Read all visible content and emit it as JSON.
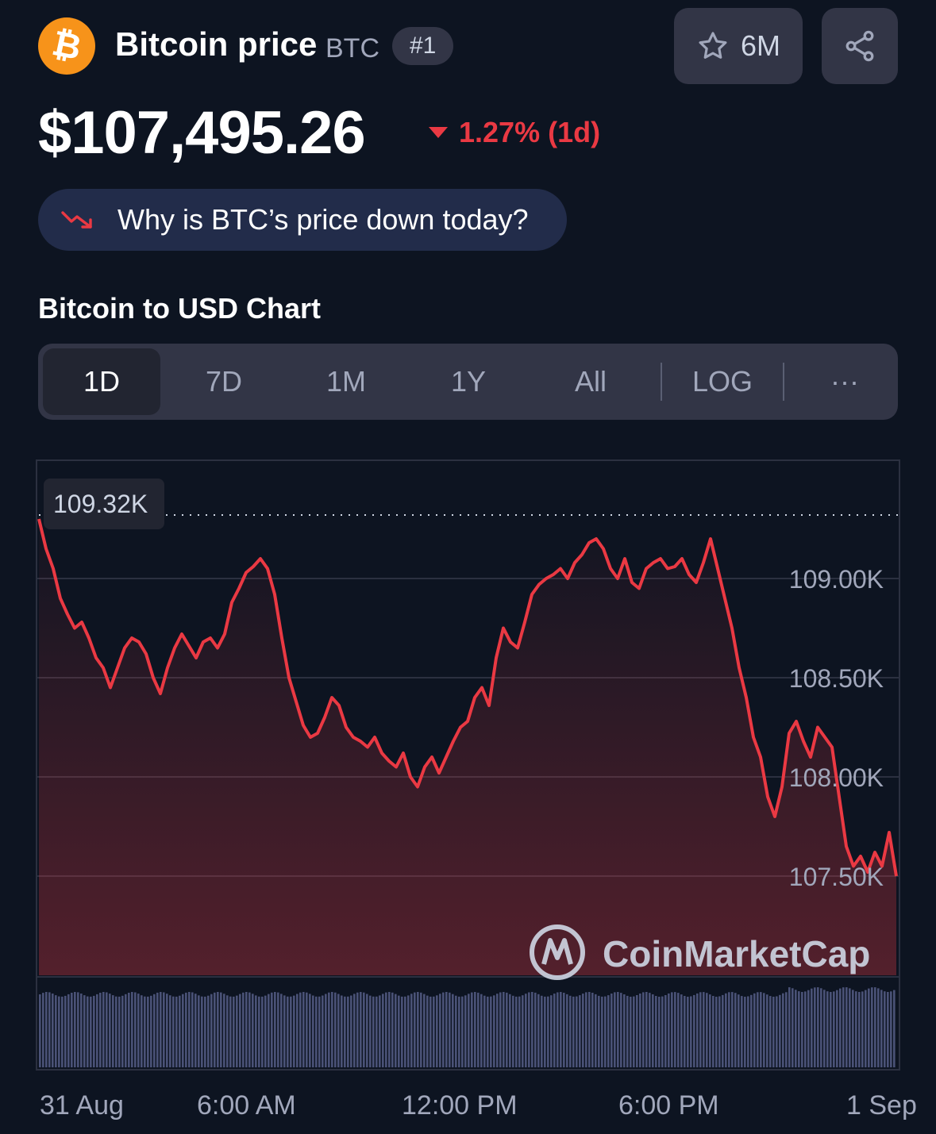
{
  "coin": {
    "logo_glyph": "₿",
    "name": "Bitcoin price",
    "symbol": "BTC",
    "rank": "#1",
    "watchlist_count": "6M",
    "price": "$107,495.26",
    "change": "1.27% (1d)",
    "change_direction": "down",
    "why_prompt": "Why is BTC’s price down today?"
  },
  "chart_title": "Bitcoin to USD Chart",
  "tabs": [
    {
      "label": "1D",
      "active": true
    },
    {
      "label": "7D",
      "active": false
    },
    {
      "label": "1M",
      "active": false
    },
    {
      "label": "1Y",
      "active": false
    },
    {
      "label": "All",
      "active": false
    },
    {
      "label": "LOG",
      "active": false
    },
    {
      "label": "···",
      "active": false
    }
  ],
  "colors": {
    "background": "#0d1421",
    "negative": "#ea3943",
    "accent_orange": "#f7931a",
    "volume": "#4a5277"
  },
  "icons": {
    "coin": "bitcoin-icon",
    "watch": "star-icon",
    "share": "share-icon",
    "trend": "trend-down-icon"
  },
  "watermark": "CoinMarketCap",
  "chart_data": {
    "type": "line",
    "title": "",
    "max_marker_label": "109.32K",
    "max_value": 109.32,
    "y_unit": "K USD",
    "yticks": [
      {
        "value": 109.0,
        "label": "109.00K"
      },
      {
        "value": 108.5,
        "label": "108.50K"
      },
      {
        "value": 108.0,
        "label": "108.00K"
      },
      {
        "value": 107.5,
        "label": "107.50K"
      }
    ],
    "ylim": [
      107.0,
      109.6
    ],
    "x_labels": [
      "31 Aug",
      "6:00 AM",
      "12:00 PM",
      "6:00 PM",
      "1 Sep"
    ],
    "xlim_hours": [
      0,
      24
    ],
    "series": [
      {
        "points_hours_value": [
          [
            0.0,
            109.3
          ],
          [
            0.2,
            109.15
          ],
          [
            0.4,
            109.05
          ],
          [
            0.6,
            108.9
          ],
          [
            0.8,
            108.82
          ],
          [
            1.0,
            108.75
          ],
          [
            1.2,
            108.78
          ],
          [
            1.4,
            108.7
          ],
          [
            1.6,
            108.6
          ],
          [
            1.8,
            108.55
          ],
          [
            2.0,
            108.45
          ],
          [
            2.2,
            108.55
          ],
          [
            2.4,
            108.65
          ],
          [
            2.6,
            108.7
          ],
          [
            2.8,
            108.68
          ],
          [
            3.0,
            108.62
          ],
          [
            3.2,
            108.5
          ],
          [
            3.4,
            108.42
          ],
          [
            3.6,
            108.55
          ],
          [
            3.8,
            108.65
          ],
          [
            4.0,
            108.72
          ],
          [
            4.2,
            108.66
          ],
          [
            4.4,
            108.6
          ],
          [
            4.6,
            108.68
          ],
          [
            4.8,
            108.7
          ],
          [
            5.0,
            108.65
          ],
          [
            5.2,
            108.72
          ],
          [
            5.4,
            108.88
          ],
          [
            5.6,
            108.95
          ],
          [
            5.8,
            109.03
          ],
          [
            6.0,
            109.06
          ],
          [
            6.2,
            109.1
          ],
          [
            6.4,
            109.05
          ],
          [
            6.6,
            108.92
          ],
          [
            6.8,
            108.7
          ],
          [
            7.0,
            108.5
          ],
          [
            7.2,
            108.38
          ],
          [
            7.4,
            108.26
          ],
          [
            7.6,
            108.2
          ],
          [
            7.8,
            108.22
          ],
          [
            8.0,
            108.3
          ],
          [
            8.2,
            108.4
          ],
          [
            8.4,
            108.36
          ],
          [
            8.6,
            108.25
          ],
          [
            8.8,
            108.2
          ],
          [
            9.0,
            108.18
          ],
          [
            9.2,
            108.15
          ],
          [
            9.4,
            108.2
          ],
          [
            9.6,
            108.12
          ],
          [
            9.8,
            108.08
          ],
          [
            10.0,
            108.05
          ],
          [
            10.2,
            108.12
          ],
          [
            10.4,
            108.0
          ],
          [
            10.6,
            107.95
          ],
          [
            10.8,
            108.05
          ],
          [
            11.0,
            108.1
          ],
          [
            11.2,
            108.02
          ],
          [
            11.4,
            108.1
          ],
          [
            11.6,
            108.18
          ],
          [
            11.8,
            108.25
          ],
          [
            12.0,
            108.28
          ],
          [
            12.2,
            108.4
          ],
          [
            12.4,
            108.45
          ],
          [
            12.6,
            108.36
          ],
          [
            12.8,
            108.6
          ],
          [
            13.0,
            108.75
          ],
          [
            13.2,
            108.68
          ],
          [
            13.4,
            108.65
          ],
          [
            13.6,
            108.78
          ],
          [
            13.8,
            108.92
          ],
          [
            14.0,
            108.97
          ],
          [
            14.2,
            109.0
          ],
          [
            14.4,
            109.02
          ],
          [
            14.6,
            109.05
          ],
          [
            14.8,
            109.0
          ],
          [
            15.0,
            109.08
          ],
          [
            15.2,
            109.12
          ],
          [
            15.4,
            109.18
          ],
          [
            15.6,
            109.2
          ],
          [
            15.8,
            109.15
          ],
          [
            16.0,
            109.05
          ],
          [
            16.2,
            109.0
          ],
          [
            16.4,
            109.1
          ],
          [
            16.6,
            108.98
          ],
          [
            16.8,
            108.95
          ],
          [
            17.0,
            109.05
          ],
          [
            17.2,
            109.08
          ],
          [
            17.4,
            109.1
          ],
          [
            17.6,
            109.05
          ],
          [
            17.8,
            109.06
          ],
          [
            18.0,
            109.1
          ],
          [
            18.2,
            109.02
          ],
          [
            18.4,
            108.98
          ],
          [
            18.6,
            109.08
          ],
          [
            18.8,
            109.2
          ],
          [
            19.0,
            109.05
          ],
          [
            19.2,
            108.9
          ],
          [
            19.4,
            108.75
          ],
          [
            19.6,
            108.55
          ],
          [
            19.8,
            108.4
          ],
          [
            20.0,
            108.2
          ],
          [
            20.2,
            108.1
          ],
          [
            20.4,
            107.9
          ],
          [
            20.6,
            107.8
          ],
          [
            20.8,
            107.95
          ],
          [
            21.0,
            108.22
          ],
          [
            21.2,
            108.28
          ],
          [
            21.4,
            108.18
          ],
          [
            21.6,
            108.1
          ],
          [
            21.8,
            108.25
          ],
          [
            22.0,
            108.2
          ],
          [
            22.2,
            108.15
          ],
          [
            22.4,
            107.9
          ],
          [
            22.6,
            107.65
          ],
          [
            22.8,
            107.55
          ],
          [
            23.0,
            107.6
          ],
          [
            23.2,
            107.52
          ],
          [
            23.4,
            107.62
          ],
          [
            23.6,
            107.55
          ],
          [
            23.8,
            107.72
          ],
          [
            24.0,
            107.5
          ]
        ]
      }
    ],
    "grid": true,
    "volume_bars": true
  }
}
